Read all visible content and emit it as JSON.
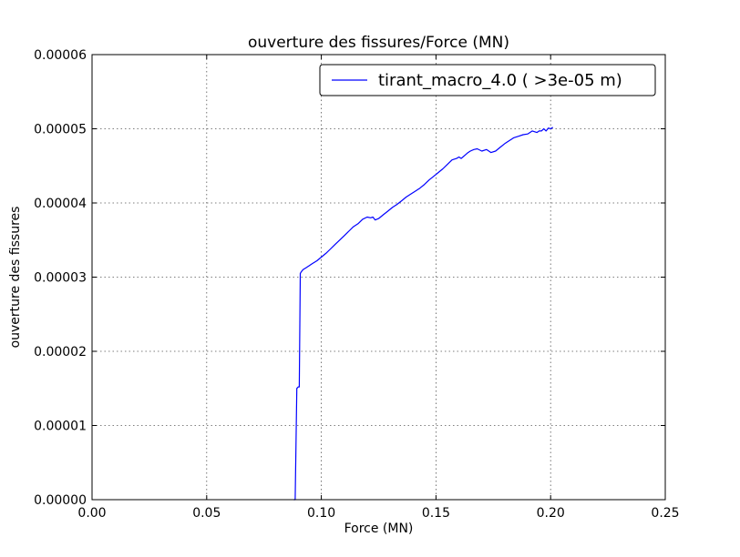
{
  "chart_data": {
    "type": "line",
    "title": "ouverture des fissures/Force (MN)",
    "xlabel": "Force (MN)",
    "ylabel": "ouverture des fissures",
    "xlim": [
      0.0,
      0.25
    ],
    "ylim": [
      0.0,
      6e-05
    ],
    "xticks": [
      "0.00",
      "0.05",
      "0.10",
      "0.15",
      "0.20",
      "0.25"
    ],
    "yticks": [
      "0.00000",
      "0.00001",
      "0.00002",
      "0.00003",
      "0.00004",
      "0.00005",
      "0.00006"
    ],
    "xtick_values": [
      0.0,
      0.05,
      0.1,
      0.15,
      0.2,
      0.25
    ],
    "ytick_values": [
      0.0,
      1e-05,
      2e-05,
      3e-05,
      4e-05,
      5e-05,
      6e-05
    ],
    "grid": true,
    "legend_position": "top-right",
    "series": [
      {
        "name": "tirant_macro_4.0 ( >3e-05 m)",
        "color": "#0000ff",
        "x": [
          0.088,
          0.0886,
          0.0893,
          0.0899,
          0.0904,
          0.0908,
          0.0912,
          0.092,
          0.093,
          0.0945,
          0.096,
          0.098,
          0.1,
          0.102,
          0.104,
          0.106,
          0.108,
          0.11,
          0.112,
          0.114,
          0.116,
          0.118,
          0.12,
          0.1215,
          0.1225,
          0.1235,
          0.125,
          0.127,
          0.129,
          0.131,
          0.133,
          0.135,
          0.137,
          0.139,
          0.141,
          0.143,
          0.145,
          0.147,
          0.149,
          0.151,
          0.153,
          0.155,
          0.157,
          0.159,
          0.16,
          0.161,
          0.1625,
          0.164,
          0.165,
          0.1665,
          0.168,
          0.17,
          0.172,
          0.174,
          0.176,
          0.178,
          0.18,
          0.182,
          0.184,
          0.186,
          0.188,
          0.19,
          0.192,
          0.194,
          0.195,
          0.196,
          0.197,
          0.198,
          0.199,
          0.2,
          0.201
        ],
        "y": [
          0.0,
          0.0,
          1.5e-05,
          1.52e-05,
          1.52e-05,
          3.05e-05,
          3.07e-05,
          3.1e-05,
          3.12e-05,
          3.15e-05,
          3.18e-05,
          3.22e-05,
          3.27e-05,
          3.32e-05,
          3.38e-05,
          3.44e-05,
          3.5e-05,
          3.56e-05,
          3.62e-05,
          3.68e-05,
          3.72e-05,
          3.78e-05,
          3.81e-05,
          3.8e-05,
          3.81e-05,
          3.77e-05,
          3.79e-05,
          3.84e-05,
          3.89e-05,
          3.94e-05,
          3.98e-05,
          4.03e-05,
          4.08e-05,
          4.12e-05,
          4.16e-05,
          4.2e-05,
          4.25e-05,
          4.31e-05,
          4.36e-05,
          4.41e-05,
          4.46e-05,
          4.52e-05,
          4.58e-05,
          4.6e-05,
          4.62e-05,
          4.6e-05,
          4.64e-05,
          4.68e-05,
          4.7e-05,
          4.72e-05,
          4.73e-05,
          4.7e-05,
          4.72e-05,
          4.68e-05,
          4.7e-05,
          4.75e-05,
          4.8e-05,
          4.84e-05,
          4.88e-05,
          4.9e-05,
          4.92e-05,
          4.93e-05,
          4.97e-05,
          4.95e-05,
          4.97e-05,
          4.97e-05,
          5e-05,
          4.97e-05,
          5.01e-05,
          5e-05,
          5.02e-05
        ]
      }
    ]
  }
}
